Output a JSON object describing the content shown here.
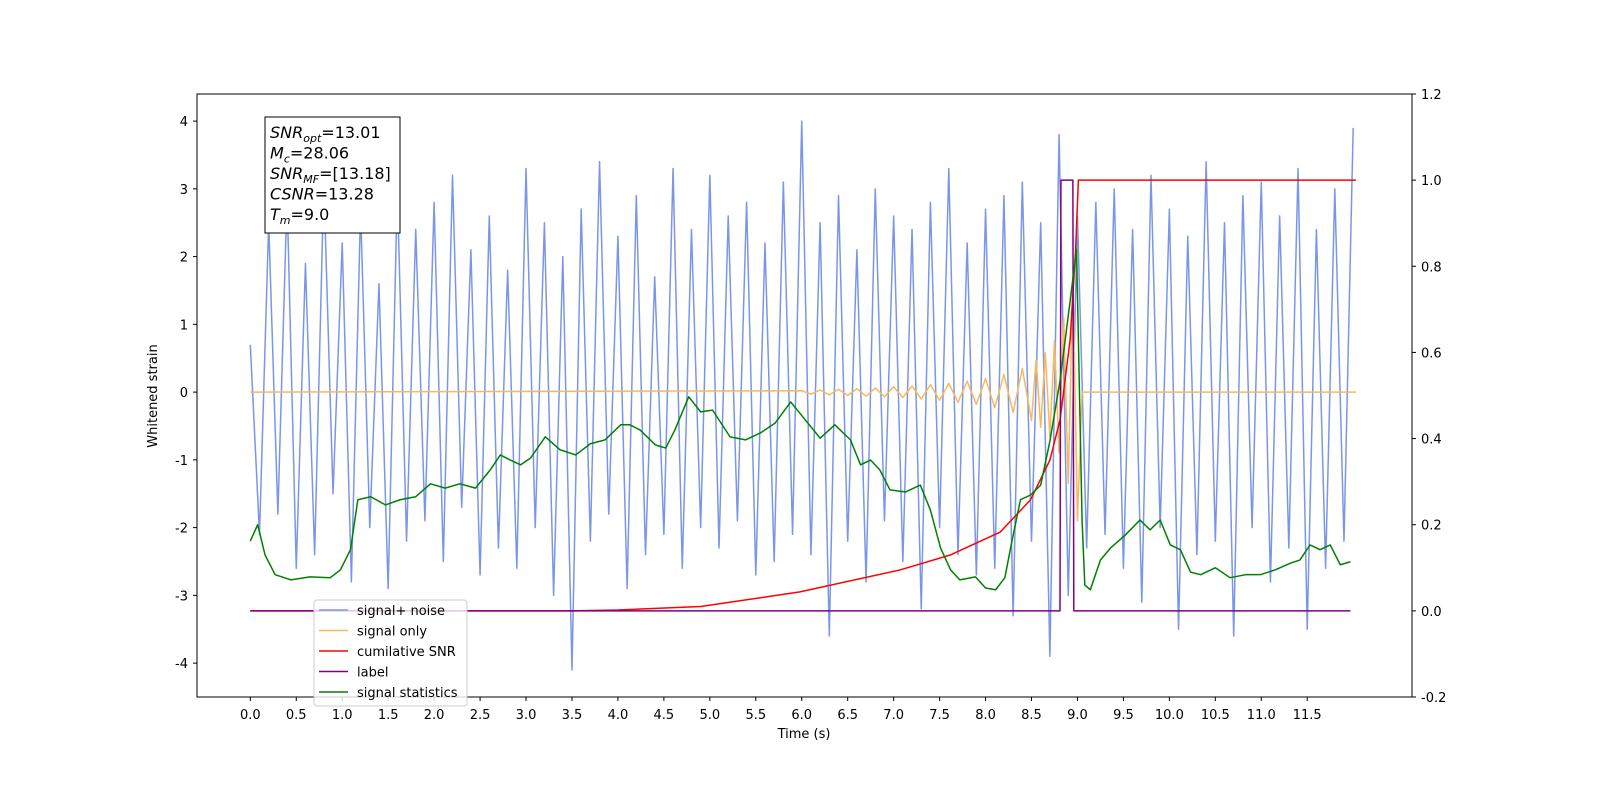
{
  "chart_data": {
    "type": "line",
    "xlabel": "Time (s)",
    "ylabel": "Whitened strain",
    "xlim": [
      -0.58,
      12.64
    ],
    "ylim": [
      -4.5,
      4.4
    ],
    "y2lim": [
      -0.2,
      1.2
    ],
    "xticks": [
      {
        "value": 0,
        "label": "0.0"
      },
      0.5,
      {
        "value": 1,
        "label": "1.0"
      },
      1.5,
      {
        "value": 2,
        "label": "2.0"
      },
      2.5,
      {
        "value": 3,
        "label": "3.0"
      },
      3.5,
      {
        "value": 4,
        "label": "4.0"
      },
      4.5,
      {
        "value": 5,
        "label": "5.0"
      },
      5.5,
      {
        "value": 6,
        "label": "6.0"
      },
      6.5,
      {
        "value": 7,
        "label": "7.0"
      },
      7.5,
      {
        "value": 8,
        "label": "8.0"
      },
      8.5,
      {
        "value": 9,
        "label": "9.0"
      },
      9.5,
      {
        "value": 10,
        "label": "10.0"
      },
      10.5,
      {
        "value": 11,
        "label": "11.0"
      },
      11.5
    ],
    "yticks": [
      -4,
      -3,
      -2,
      -1,
      0,
      1,
      2,
      3,
      4
    ],
    "y2ticks": [
      -0.2,
      {
        "value": 0,
        "label": "0.0"
      },
      0.2,
      0.4,
      0.6,
      0.8,
      {
        "value": 1,
        "label": "1.0"
      },
      1.2
    ],
    "legend": "lower left",
    "annotation": [
      {
        "name": "SNR",
        "sub": "opt",
        "text": "=13.01"
      },
      {
        "name": "M",
        "sub": "c",
        "text": "=28.06"
      },
      {
        "name": "SNR",
        "sub": "MF",
        "text": "=[13.18]"
      },
      {
        "name": "CSNR",
        "text": "=13.28"
      },
      {
        "name": "T",
        "sub": "m",
        "text": "=9.0"
      }
    ],
    "series": [
      {
        "name": "signal+ noise",
        "color": "#7a96e8",
        "axis": "y",
        "x": [
          0,
          0.1,
          0.2,
          0.3,
          0.4,
          0.5,
          0.6,
          0.7,
          0.8,
          0.9,
          1,
          1.1,
          1.2,
          1.3,
          1.4,
          1.5,
          1.6,
          1.7,
          1.8,
          1.9,
          2,
          2.1,
          2.2,
          2.3,
          2.4,
          2.5,
          2.6,
          2.7,
          2.8,
          2.9,
          3,
          3.1,
          3.2,
          3.3,
          3.4,
          3.5,
          3.6,
          3.7,
          3.8,
          3.9,
          4,
          4.1,
          4.2,
          4.3,
          4.4,
          4.5,
          4.6,
          4.7,
          4.8,
          4.9,
          5,
          5.1,
          5.2,
          5.3,
          5.4,
          5.5,
          5.6,
          5.7,
          5.8,
          5.9,
          6,
          6.1,
          6.2,
          6.3,
          6.4,
          6.5,
          6.6,
          6.7,
          6.8,
          6.9,
          7,
          7.1,
          7.2,
          7.3,
          7.4,
          7.5,
          7.6,
          7.7,
          7.8,
          7.9,
          8,
          8.1,
          8.2,
          8.3,
          8.4,
          8.5,
          8.6,
          8.7,
          8.8,
          8.9,
          9,
          9.1,
          9.2,
          9.3,
          9.4,
          9.5,
          9.6,
          9.7,
          9.8,
          9.9,
          10,
          10.1,
          10.2,
          10.3,
          10.4,
          10.5,
          10.6,
          10.7,
          10.8,
          10.9,
          11,
          11.1,
          11.2,
          11.3,
          11.4,
          11.5,
          11.6,
          11.7,
          11.8,
          11.9,
          12
        ],
        "values": [
          0.7,
          -2.1,
          2.5,
          -1.8,
          2.9,
          -2.6,
          1.9,
          -2.4,
          3.1,
          -1.5,
          2.2,
          -2.8,
          2.7,
          -2.0,
          1.6,
          -2.9,
          3.0,
          -2.2,
          2.4,
          -1.9,
          2.8,
          -2.5,
          3.2,
          -1.7,
          2.1,
          -2.7,
          2.6,
          -2.3,
          1.8,
          -2.6,
          3.3,
          -2.0,
          2.5,
          -3.0,
          2.0,
          -4.1,
          2.7,
          -2.2,
          3.4,
          -1.8,
          2.3,
          -2.9,
          2.9,
          -2.4,
          1.7,
          -2.1,
          3.3,
          -2.6,
          2.4,
          -2.0,
          3.2,
          -2.3,
          2.6,
          -1.9,
          2.8,
          -2.7,
          2.2,
          -2.5,
          3.1,
          -2.1,
          4.0,
          -2.4,
          2.5,
          -3.6,
          2.9,
          -2.2,
          2.1,
          -2.8,
          3.0,
          -1.9,
          2.6,
          -2.5,
          2.4,
          -3.2,
          2.8,
          -2.0,
          3.3,
          -2.4,
          2.2,
          -2.7,
          2.7,
          -2.6,
          2.9,
          -3.3,
          3.1,
          -2.2,
          2.5,
          -3.9,
          3.8,
          -3.0,
          2.6,
          -2.3,
          2.8,
          -2.1,
          3.0,
          -2.6,
          2.4,
          -3.1,
          3.2,
          -2.0,
          2.7,
          -3.5,
          2.3,
          -2.4,
          3.4,
          -2.2,
          2.5,
          -3.6,
          2.9,
          -2.0,
          3.1,
          -2.8,
          2.6,
          -2.3,
          3.3,
          -3.5,
          2.4,
          -2.6,
          3.0,
          -2.2,
          3.9
        ]
      },
      {
        "name": "signal only",
        "color": "#f8b860",
        "axis": "y",
        "x": [
          0,
          6.0,
          6.1,
          6.2,
          6.3,
          6.4,
          6.5,
          6.6,
          6.7,
          6.8,
          6.9,
          7.0,
          7.1,
          7.2,
          7.3,
          7.4,
          7.5,
          7.6,
          7.7,
          7.8,
          7.9,
          8.0,
          8.1,
          8.2,
          8.3,
          8.4,
          8.5,
          8.55,
          8.6,
          8.65,
          8.7,
          8.75,
          8.8,
          8.85,
          8.9,
          8.95,
          9.0,
          9.05,
          12.03
        ],
        "values": [
          0,
          0.02,
          -0.03,
          0.03,
          -0.04,
          0.04,
          -0.05,
          0.05,
          -0.06,
          0.06,
          -0.07,
          0.08,
          -0.08,
          0.09,
          -0.1,
          0.11,
          -0.12,
          0.13,
          -0.15,
          0.16,
          -0.18,
          0.2,
          -0.23,
          0.26,
          -0.3,
          0.35,
          -0.42,
          0.47,
          -0.52,
          0.58,
          -0.66,
          0.76,
          -0.9,
          1.1,
          -1.35,
          1.7,
          -1.9,
          0,
          0
        ]
      },
      {
        "name": "cumilative SNR",
        "color": "#ff0000",
        "axis": "y2",
        "x": [
          0,
          3.5,
          4.0,
          4.9,
          5.98,
          7.07,
          7.62,
          8.16,
          8.49,
          8.7,
          8.81,
          8.92,
          8.98,
          9.01,
          12.03
        ],
        "values": [
          0,
          0,
          0.002,
          0.01,
          0.044,
          0.095,
          0.13,
          0.183,
          0.258,
          0.35,
          0.443,
          0.629,
          0.838,
          1.0,
          1.0
        ]
      },
      {
        "name": "label",
        "color": "#800080",
        "axis": "y2",
        "x": [
          0,
          8.81,
          8.82,
          8.95,
          8.96,
          11.97
        ],
        "values": [
          0,
          0,
          1,
          1,
          0,
          0
        ]
      },
      {
        "name": "signal statistics",
        "color": "#008000",
        "axis": "y2",
        "x": [
          0,
          0.08,
          0.16,
          0.27,
          0.44,
          0.65,
          0.87,
          0.98,
          1.09,
          1.17,
          1.31,
          1.47,
          1.63,
          1.8,
          1.96,
          2.12,
          2.28,
          2.45,
          2.61,
          2.72,
          2.83,
          2.94,
          3.05,
          3.21,
          3.37,
          3.54,
          3.7,
          3.86,
          4.03,
          4.13,
          4.24,
          4.41,
          4.52,
          4.62,
          4.77,
          4.9,
          5.03,
          5.22,
          5.39,
          5.55,
          5.71,
          5.88,
          6.04,
          6.2,
          6.36,
          6.53,
          6.64,
          6.75,
          6.85,
          6.96,
          7.13,
          7.29,
          7.4,
          7.51,
          7.62,
          7.72,
          7.89,
          8.0,
          8.11,
          8.21,
          8.29,
          8.38,
          8.49,
          8.6,
          8.7,
          8.81,
          8.92,
          8.99,
          9.05,
          9.08,
          9.14,
          9.25,
          9.36,
          9.52,
          9.68,
          9.79,
          9.9,
          10.01,
          10.12,
          10.23,
          10.34,
          10.5,
          10.66,
          10.83,
          10.99,
          11.15,
          11.32,
          11.42,
          11.53,
          11.64,
          11.75,
          11.86,
          11.97
        ],
        "values": [
          0.162,
          0.2,
          0.13,
          0.084,
          0.072,
          0.079,
          0.077,
          0.095,
          0.142,
          0.258,
          0.265,
          0.246,
          0.258,
          0.265,
          0.295,
          0.285,
          0.295,
          0.285,
          0.327,
          0.362,
          0.35,
          0.339,
          0.355,
          0.404,
          0.374,
          0.362,
          0.388,
          0.397,
          0.432,
          0.432,
          0.42,
          0.385,
          0.378,
          0.42,
          0.497,
          0.462,
          0.466,
          0.404,
          0.397,
          0.413,
          0.436,
          0.485,
          0.443,
          0.401,
          0.432,
          0.397,
          0.339,
          0.35,
          0.327,
          0.281,
          0.276,
          0.292,
          0.234,
          0.146,
          0.095,
          0.072,
          0.079,
          0.053,
          0.049,
          0.077,
          0.165,
          0.258,
          0.269,
          0.292,
          0.394,
          0.534,
          0.719,
          0.84,
          0.211,
          0.06,
          0.049,
          0.118,
          0.146,
          0.176,
          0.211,
          0.188,
          0.211,
          0.153,
          0.142,
          0.09,
          0.084,
          0.1,
          0.077,
          0.084,
          0.084,
          0.095,
          0.111,
          0.118,
          0.153,
          0.142,
          0.153,
          0.107,
          0.114
        ]
      }
    ]
  }
}
